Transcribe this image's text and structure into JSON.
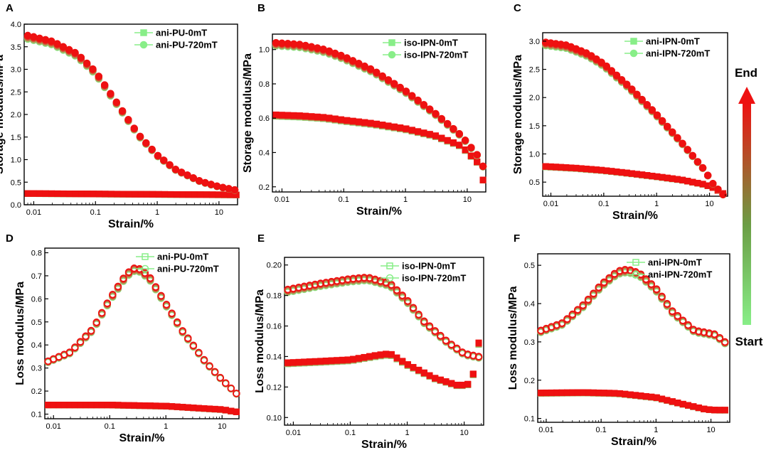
{
  "colors": {
    "start": "#88ee88",
    "end": "#ee1111",
    "axis": "#000000"
  },
  "colorbar": {
    "top_label": "End",
    "bottom_label": "Start"
  },
  "chart_data": [
    {
      "panel": "A",
      "type": "scatter",
      "xscale": "log",
      "xlabel": "Strain/%",
      "ylabel": "Storage modulus/MPa",
      "xlim": [
        0.007,
        20
      ],
      "ylim": [
        0.0,
        4.0
      ],
      "xticks": [
        0.01,
        0.1,
        1,
        10
      ],
      "xtick_labels": [
        "0.01",
        "0.1",
        "1",
        "10"
      ],
      "yticks": [
        0,
        0.5,
        1,
        1.5,
        2,
        2.5,
        3,
        3.5,
        4
      ],
      "ytick_labels": [
        "0.0",
        "0.5",
        "1.0",
        "1.5",
        "2.0",
        "2.5",
        "3.0",
        "3.5",
        "4.0"
      ],
      "legend": [
        "ani-PU-0mT",
        "ani-PU-720mT"
      ],
      "legend_marker": "filled",
      "legend_position": "top-right",
      "series": [
        {
          "name": "ani-PU-0mT",
          "marker": "square",
          "x": [
            0.008,
            20
          ],
          "y": [
            0.25,
            0.22
          ]
        },
        {
          "name": "ani-PU-720mT",
          "marker": "circle",
          "x": [
            0.008,
            0.01,
            0.02,
            0.05,
            0.1,
            0.2,
            0.5,
            1,
            2,
            5,
            10,
            18
          ],
          "y": [
            3.75,
            3.72,
            3.62,
            3.35,
            2.95,
            2.35,
            1.55,
            1.1,
            0.78,
            0.52,
            0.4,
            0.33
          ]
        }
      ]
    },
    {
      "panel": "B",
      "type": "scatter",
      "xscale": "log",
      "xlabel": "Strain/%",
      "ylabel": "Storage modulus/MPa",
      "xlim": [
        0.007,
        20
      ],
      "ylim": [
        0.17,
        1.09
      ],
      "xticks": [
        0.01,
        0.1,
        1,
        10
      ],
      "xtick_labels": [
        "0.01",
        "0.1",
        "1",
        "10"
      ],
      "yticks": [
        0.2,
        0.4,
        0.6,
        0.8,
        1.0
      ],
      "ytick_labels": [
        "0.2",
        "0.4",
        "0.6",
        "0.8",
        "1.0"
      ],
      "legend": [
        "iso-IPN-0mT",
        "iso-IPN-720mT"
      ],
      "legend_marker": "filled",
      "legend_position": "top-right",
      "series": [
        {
          "name": "iso-IPN-0mT",
          "marker": "square",
          "x": [
            0.008,
            0.02,
            0.05,
            0.1,
            0.3,
            1,
            3,
            8,
            15,
            18
          ],
          "y": [
            0.62,
            0.615,
            0.605,
            0.59,
            0.57,
            0.54,
            0.5,
            0.44,
            0.34,
            0.24
          ]
        },
        {
          "name": "iso-IPN-720mT",
          "marker": "circle",
          "x": [
            0.008,
            0.02,
            0.05,
            0.1,
            0.3,
            1,
            3,
            8,
            15,
            18
          ],
          "y": [
            1.04,
            1.03,
            1.0,
            0.96,
            0.88,
            0.76,
            0.63,
            0.5,
            0.38,
            0.32
          ]
        }
      ]
    },
    {
      "panel": "C",
      "type": "scatter",
      "xscale": "log",
      "xlabel": "Strain/%",
      "ylabel": "Storage modulus/MPa",
      "xlim": [
        0.007,
        22
      ],
      "ylim": [
        0.25,
        3.15
      ],
      "xticks": [
        0.01,
        0.1,
        1,
        10
      ],
      "xtick_labels": [
        "0.01",
        "0.1",
        "1",
        "10"
      ],
      "yticks": [
        0.5,
        1.0,
        1.5,
        2.0,
        2.5,
        3.0
      ],
      "ytick_labels": [
        "0.5",
        "1.0",
        "1.5",
        "2.0",
        "2.5",
        "3.0"
      ],
      "legend": [
        "ani-IPN-0mT",
        "ani-IPN-720mT"
      ],
      "legend_marker": "filled",
      "legend_position": "top-right",
      "series": [
        {
          "name": "ani-IPN-0mT",
          "marker": "square",
          "x": [
            0.008,
            0.03,
            0.1,
            0.3,
            1,
            3,
            8,
            12,
            18
          ],
          "y": [
            0.78,
            0.75,
            0.71,
            0.66,
            0.6,
            0.54,
            0.46,
            0.4,
            0.3
          ]
        },
        {
          "name": "ani-IPN-720mT",
          "marker": "circle",
          "x": [
            0.008,
            0.02,
            0.05,
            0.1,
            0.3,
            1,
            3,
            8,
            12,
            18
          ],
          "y": [
            2.98,
            2.93,
            2.78,
            2.6,
            2.2,
            1.7,
            1.2,
            0.72,
            0.45,
            0.28
          ]
        }
      ]
    },
    {
      "panel": "D",
      "type": "scatter",
      "xscale": "log",
      "xlabel": "Strain/%",
      "ylabel": "Loss modulus/MPa",
      "xlim": [
        0.007,
        20
      ],
      "ylim": [
        0.08,
        0.82
      ],
      "xticks": [
        0.01,
        0.1,
        1,
        10
      ],
      "xtick_labels": [
        "0.01",
        "0.1",
        "1",
        "10"
      ],
      "yticks": [
        0.1,
        0.2,
        0.3,
        0.4,
        0.5,
        0.6,
        0.7,
        0.8
      ],
      "ytick_labels": [
        "0.1",
        "0.2",
        "0.3",
        "0.4",
        "0.5",
        "0.6",
        "0.7",
        "0.8"
      ],
      "legend": [
        "ani-PU-0mT",
        "ani-PU-720mT"
      ],
      "legend_marker": "hollow",
      "legend_position": "top-right",
      "series": [
        {
          "name": "ani-PU-0mT",
          "marker": "square",
          "x": [
            0.008,
            0.1,
            1,
            10,
            18
          ],
          "y": [
            0.14,
            0.14,
            0.135,
            0.12,
            0.11
          ]
        },
        {
          "name": "ani-PU-720mT",
          "marker": "circle",
          "x": [
            0.008,
            0.02,
            0.05,
            0.1,
            0.2,
            0.3,
            0.5,
            1,
            2,
            5,
            10,
            18
          ],
          "y": [
            0.33,
            0.37,
            0.47,
            0.6,
            0.71,
            0.74,
            0.7,
            0.58,
            0.46,
            0.33,
            0.25,
            0.19
          ]
        }
      ]
    },
    {
      "panel": "E",
      "type": "scatter",
      "xscale": "log",
      "xlabel": "Strain/%",
      "ylabel": "Loss modulus/MPa",
      "xlim": [
        0.007,
        22
      ],
      "ylim": [
        0.095,
        0.205
      ],
      "xticks": [
        0.01,
        0.1,
        1,
        10
      ],
      "xtick_labels": [
        "0.01",
        "0.1",
        "1",
        "10"
      ],
      "yticks": [
        0.1,
        0.12,
        0.14,
        0.16,
        0.18,
        0.2
      ],
      "ytick_labels": [
        "0.10",
        "0.12",
        "0.14",
        "0.16",
        "0.18",
        "0.20"
      ],
      "legend": [
        "iso-IPN-0mT",
        "iso-IPN-720mT"
      ],
      "legend_marker": "hollow",
      "legend_position": "top-right",
      "series": [
        {
          "name": "iso-IPN-0mT",
          "marker": "square",
          "x": [
            0.008,
            0.03,
            0.1,
            0.3,
            0.5,
            1,
            3,
            8,
            12,
            15,
            18
          ],
          "y": [
            0.136,
            0.137,
            0.138,
            0.141,
            0.142,
            0.135,
            0.126,
            0.121,
            0.122,
            0.13,
            0.149
          ]
        },
        {
          "name": "iso-IPN-720mT",
          "marker": "circle",
          "x": [
            0.008,
            0.03,
            0.1,
            0.2,
            0.5,
            1,
            2,
            5,
            10,
            18
          ],
          "y": [
            0.184,
            0.188,
            0.191,
            0.192,
            0.188,
            0.177,
            0.163,
            0.15,
            0.142,
            0.14
          ]
        }
      ]
    },
    {
      "panel": "F",
      "type": "scatter",
      "xscale": "log",
      "xlabel": "Strain/%",
      "ylabel": "Loss modulus/MPa",
      "xlim": [
        0.007,
        22
      ],
      "ylim": [
        0.09,
        0.53
      ],
      "xticks": [
        0.01,
        0.1,
        1,
        10
      ],
      "xtick_labels": [
        "0.01",
        "0.1",
        "1",
        "10"
      ],
      "yticks": [
        0.1,
        0.2,
        0.3,
        0.4,
        0.5
      ],
      "ytick_labels": [
        "0.1",
        "0.2",
        "0.3",
        "0.4",
        "0.5"
      ],
      "legend": [
        "ani-IPN-0mT",
        "ani-IPN-720mT"
      ],
      "legend_marker": "hollow",
      "legend_position": "top-right",
      "series": [
        {
          "name": "ani-IPN-0mT",
          "marker": "square",
          "x": [
            0.008,
            0.05,
            0.2,
            1,
            3,
            8,
            12,
            18
          ],
          "y": [
            0.167,
            0.168,
            0.166,
            0.155,
            0.138,
            0.124,
            0.122,
            0.122
          ]
        },
        {
          "name": "ani-IPN-720mT",
          "marker": "circle",
          "x": [
            0.008,
            0.02,
            0.05,
            0.1,
            0.2,
            0.3,
            0.5,
            1,
            2,
            5,
            8,
            12,
            18
          ],
          "y": [
            0.33,
            0.35,
            0.4,
            0.45,
            0.485,
            0.49,
            0.48,
            0.44,
            0.38,
            0.33,
            0.325,
            0.32,
            0.3
          ]
        }
      ]
    }
  ]
}
